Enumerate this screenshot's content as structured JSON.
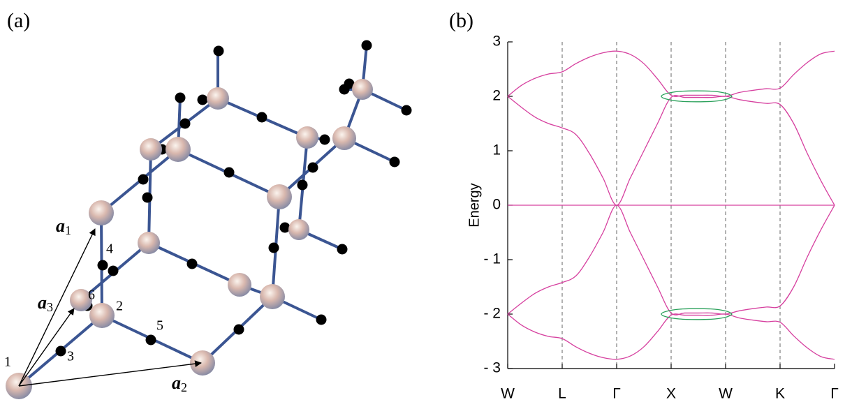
{
  "panel_labels": {
    "a": "(a)",
    "b": "(b)"
  },
  "lattice": {
    "site_labels": [
      "1",
      "2",
      "3",
      "4",
      "5",
      "6"
    ],
    "vectors": [
      {
        "symbol": "a",
        "index": "1"
      },
      {
        "symbol": "a",
        "index": "2"
      },
      {
        "symbol": "a",
        "index": "3"
      }
    ]
  },
  "chart_data": {
    "type": "line",
    "ylabel": "Energy",
    "xlim": [
      0,
      6
    ],
    "ylim": [
      -3,
      3
    ],
    "xticks": [
      {
        "value": 0,
        "label": "W"
      },
      {
        "value": 1,
        "label": "L"
      },
      {
        "value": 2,
        "label": "Γ"
      },
      {
        "value": 3,
        "label": "X"
      },
      {
        "value": 4,
        "label": "W"
      },
      {
        "value": 5,
        "label": "K"
      },
      {
        "value": 6,
        "label": "Γ"
      }
    ],
    "yticks": [
      {
        "value": -3,
        "label": "- 3"
      },
      {
        "value": -2,
        "label": "- 2"
      },
      {
        "value": -1,
        "label": "- 1"
      },
      0,
      1,
      2,
      3
    ],
    "xgrid": true,
    "x": [
      0,
      0.25,
      0.5,
      0.75,
      1,
      1.25,
      1.5,
      1.75,
      2,
      2.25,
      2.5,
      2.75,
      3,
      3.25,
      3.5,
      3.75,
      4,
      4.25,
      4.5,
      4.75,
      5,
      5.25,
      5.5,
      5.75,
      6
    ],
    "series": [
      {
        "color": "#d6409f",
        "values": [
          2.0,
          2.2,
          2.33,
          2.41,
          2.45,
          2.6,
          2.72,
          2.8,
          2.83,
          2.77,
          2.6,
          2.32,
          2.02,
          2.02,
          2.02,
          2.02,
          2.0,
          2.07,
          2.11,
          2.14,
          2.15,
          2.4,
          2.62,
          2.78,
          2.83
        ]
      },
      {
        "color": "#d6409f",
        "values": [
          2.0,
          1.8,
          1.62,
          1.5,
          1.42,
          1.3,
          0.95,
          0.5,
          0,
          0.5,
          1.0,
          1.5,
          1.98,
          1.98,
          1.98,
          1.98,
          2.0,
          1.94,
          1.9,
          1.87,
          1.85,
          1.5,
          0.95,
          0.45,
          0
        ]
      },
      {
        "color": "#d6409f",
        "values": [
          0,
          0,
          0,
          0,
          0,
          0,
          0,
          0,
          0,
          0,
          0,
          0,
          0,
          0,
          0,
          0,
          0,
          0,
          0,
          0,
          0,
          0,
          0,
          0,
          0
        ]
      },
      {
        "color": "#d6409f",
        "values": [
          -2.0,
          -1.8,
          -1.62,
          -1.5,
          -1.42,
          -1.3,
          -0.95,
          -0.5,
          0,
          -0.5,
          -1.0,
          -1.5,
          -1.98,
          -1.98,
          -1.98,
          -1.98,
          -2.0,
          -1.94,
          -1.9,
          -1.87,
          -1.85,
          -1.5,
          -0.95,
          -0.45,
          0
        ]
      },
      {
        "color": "#d6409f",
        "values": [
          -2.0,
          -2.2,
          -2.33,
          -2.41,
          -2.45,
          -2.6,
          -2.72,
          -2.8,
          -2.83,
          -2.77,
          -2.6,
          -2.32,
          -2.02,
          -2.02,
          -2.02,
          -2.02,
          -2.0,
          -2.07,
          -2.11,
          -2.14,
          -2.15,
          -2.4,
          -2.62,
          -2.78,
          -2.83
        ]
      },
      {
        "color": "#2aa05a",
        "x": [
          4.12,
          4.03,
          3.8,
          3.47,
          3.15,
          2.91,
          2.82,
          2.91,
          3.15,
          3.47,
          3.8,
          4.03,
          4.12
        ],
        "values": [
          2.0,
          2.05,
          2.09,
          2.1,
          2.09,
          2.05,
          2.0,
          1.95,
          1.91,
          1.9,
          1.91,
          1.95,
          2.0
        ]
      },
      {
        "color": "#2aa05a",
        "x": [
          4.12,
          4.03,
          3.8,
          3.47,
          3.15,
          2.91,
          2.82,
          2.91,
          3.15,
          3.47,
          3.8,
          4.03,
          4.12
        ],
        "values": [
          -2.0,
          -1.95,
          -1.91,
          -1.9,
          -1.91,
          -1.95,
          -2.0,
          -2.05,
          -2.09,
          -2.1,
          -2.09,
          -2.05,
          -2.0
        ]
      }
    ]
  }
}
